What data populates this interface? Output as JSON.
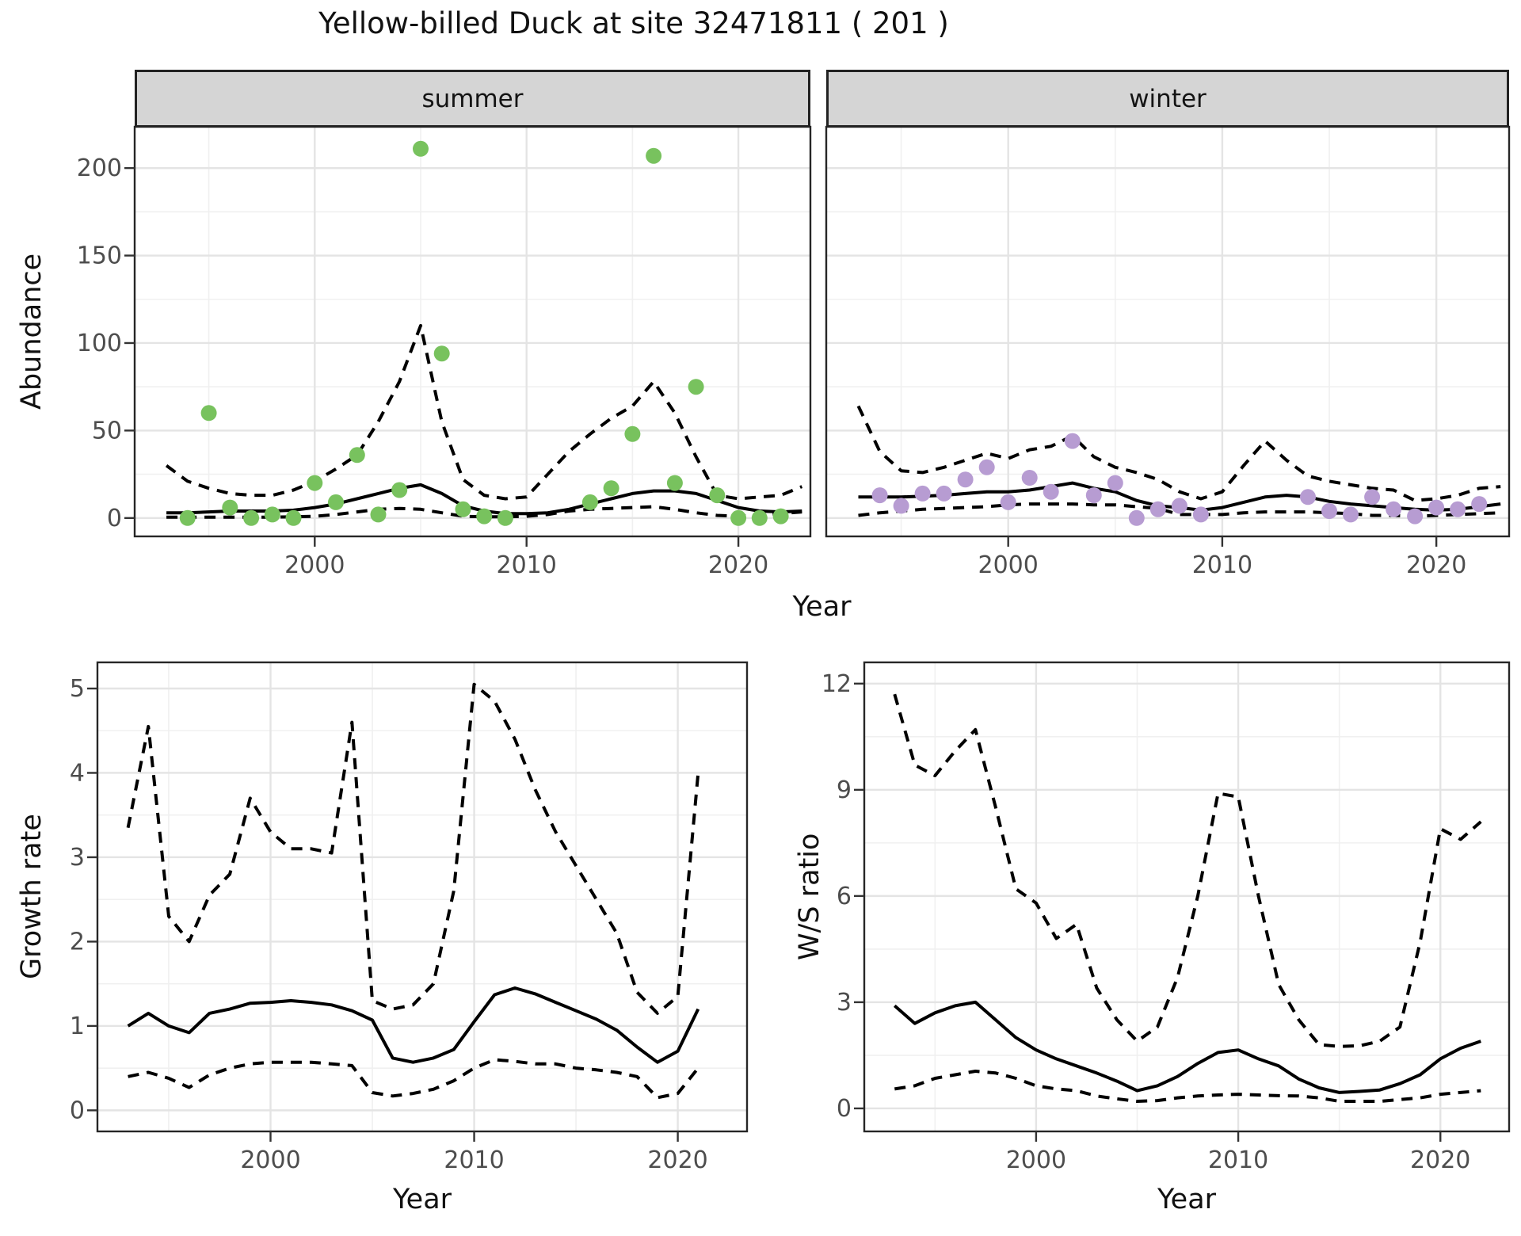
{
  "title": "Yellow-billed Duck at site 32471811 ( 201 )",
  "axis_titles": {
    "abundance": "Abundance",
    "year_top": "Year",
    "growth_rate": "Growth rate",
    "year_growth": "Year",
    "ws_ratio": "W/S ratio",
    "year_ws": "Year"
  },
  "facets": {
    "summer": "summer",
    "winter": "winter"
  },
  "colors": {
    "summer_points": "#78c25e",
    "winter_points": "#b79cd2",
    "line": "#000000",
    "strip_fill": "#d5d5d5",
    "grid_major": "#e4e4e4",
    "grid_minor": "#f0f0f0",
    "axis_text": "#4d4d4d",
    "panel_border": "#262626"
  },
  "chart_data": [
    {
      "panel": "summer",
      "type": "scatter",
      "facet_label": "summer",
      "ylabel": "Abundance",
      "xlabel": "Year",
      "xlim": [
        1991.5,
        2023.4
      ],
      "ylim": [
        -10.5,
        223.6
      ],
      "x_ticks": {
        "values": [
          2000,
          2010,
          2020
        ],
        "labels": [
          "2000",
          "2010",
          "2020"
        ],
        "minor": [
          1995,
          2005,
          2015
        ]
      },
      "y_ticks": {
        "values": [
          0,
          50,
          100,
          150,
          200
        ],
        "labels": [
          "0",
          "50",
          "100",
          "150",
          "200"
        ],
        "minor": [
          25,
          75,
          125,
          175
        ]
      },
      "show_x_labels": true,
      "show_y_labels": true,
      "point_color": "#78c25e",
      "points": {
        "year": [
          1994,
          1995,
          1996,
          1997,
          1998,
          1999,
          2000,
          2001,
          2002,
          2003,
          2004,
          2005,
          2006,
          2007,
          2008,
          2009,
          2013,
          2014,
          2015,
          2016,
          2017,
          2018,
          2019,
          2020,
          2021,
          2022
        ],
        "abundance": [
          0,
          60,
          6,
          0,
          2,
          0,
          20,
          9,
          36,
          2,
          16,
          211,
          94,
          5,
          1,
          0,
          9,
          17,
          48,
          207,
          20,
          75,
          13,
          0,
          0,
          1
        ]
      },
      "lines": {
        "mean": {
          "year": [
            1993,
            1994,
            1995,
            1996,
            1997,
            1998,
            1999,
            2000,
            2001,
            2002,
            2003,
            2004,
            2005,
            2006,
            2007,
            2008,
            2009,
            2010,
            2011,
            2012,
            2013,
            2014,
            2015,
            2016,
            2017,
            2018,
            2019,
            2020,
            2021,
            2022,
            2023
          ],
          "value": [
            3,
            3,
            3.5,
            4,
            4,
            4,
            4.5,
            6,
            8,
            11,
            14,
            17,
            19,
            14,
            7,
            4,
            2.5,
            2.5,
            3,
            5,
            8,
            11,
            14,
            15.5,
            15.5,
            14,
            10,
            6,
            4,
            3.5,
            4
          ]
        },
        "upper_ci": {
          "year": [
            1993,
            1994,
            1995,
            1996,
            1997,
            1998,
            1999,
            2000,
            2001,
            2002,
            2003,
            2004,
            2005,
            2006,
            2007,
            2008,
            2009,
            2010,
            2011,
            2012,
            2013,
            2014,
            2015,
            2016,
            2017,
            2018,
            2019,
            2020,
            2021,
            2022,
            2023
          ],
          "value": [
            30,
            21,
            17,
            14,
            13,
            13,
            16,
            21,
            28,
            36,
            55,
            78,
            110,
            55,
            22,
            13,
            11,
            12,
            25,
            38,
            48,
            57,
            64,
            78,
            60,
            35,
            13,
            11,
            12,
            13,
            18
          ]
        },
        "lower_ci": {
          "year": [
            1993,
            1994,
            1995,
            1996,
            1997,
            1998,
            1999,
            2000,
            2001,
            2002,
            2003,
            2004,
            2005,
            2006,
            2007,
            2008,
            2009,
            2010,
            2011,
            2012,
            2013,
            2014,
            2015,
            2016,
            2017,
            2018,
            2019,
            2020,
            2021,
            2022,
            2023
          ],
          "value": [
            0.5,
            0.5,
            0.5,
            0.5,
            0.5,
            0.5,
            0.7,
            1,
            2,
            3.5,
            5,
            5.5,
            5,
            3,
            1,
            0.7,
            0.7,
            1,
            2,
            4,
            5,
            5.5,
            6,
            6.5,
            5,
            3,
            1.5,
            1,
            1.5,
            2.5,
            3.5
          ]
        }
      }
    },
    {
      "panel": "winter",
      "type": "scatter",
      "facet_label": "winter",
      "ylabel": "Abundance",
      "xlabel": "Year",
      "xlim": [
        1991.5,
        2023.4
      ],
      "ylim": [
        -10.5,
        223.6
      ],
      "x_ticks": {
        "values": [
          2000,
          2010,
          2020
        ],
        "labels": [
          "2000",
          "2010",
          "2020"
        ],
        "minor": [
          1995,
          2005,
          2015
        ]
      },
      "y_ticks": {
        "values": [
          0,
          50,
          100,
          150,
          200
        ],
        "labels": [
          "0",
          "50",
          "100",
          "150",
          "200"
        ],
        "minor": [
          25,
          75,
          125,
          175
        ]
      },
      "show_x_labels": true,
      "show_y_labels": false,
      "point_color": "#b79cd2",
      "points": {
        "year": [
          1994,
          1995,
          1996,
          1997,
          1998,
          1999,
          2000,
          2001,
          2002,
          2003,
          2004,
          2005,
          2006,
          2007,
          2008,
          2009,
          2014,
          2015,
          2016,
          2017,
          2018,
          2019,
          2020,
          2021,
          2022
        ],
        "abundance": [
          13,
          7,
          14,
          14,
          22,
          29,
          9,
          23,
          15,
          44,
          13,
          20,
          0,
          5,
          7,
          2,
          12,
          4,
          2,
          12,
          5,
          1,
          6,
          5,
          8
        ]
      },
      "lines": {
        "mean": {
          "year": [
            1993,
            1994,
            1995,
            1996,
            1997,
            1998,
            1999,
            2000,
            2001,
            2002,
            2003,
            2004,
            2005,
            2006,
            2007,
            2008,
            2009,
            2010,
            2011,
            2012,
            2013,
            2014,
            2015,
            2016,
            2017,
            2018,
            2019,
            2020,
            2021,
            2022,
            2023
          ],
          "value": [
            12,
            12,
            12,
            12.5,
            13,
            14,
            15,
            15,
            16,
            18,
            20,
            17,
            15,
            10,
            7,
            6,
            4.5,
            6,
            9,
            12,
            13,
            12,
            9.5,
            8,
            7,
            6,
            5,
            4.5,
            5,
            6.5,
            8
          ]
        },
        "upper_ci": {
          "year": [
            1993,
            1994,
            1995,
            1996,
            1997,
            1998,
            1999,
            2000,
            2001,
            2002,
            2003,
            2004,
            2005,
            2006,
            2007,
            2008,
            2009,
            2010,
            2011,
            2012,
            2013,
            2014,
            2015,
            2016,
            2017,
            2018,
            2019,
            2020,
            2021,
            2022,
            2023
          ],
          "value": [
            64,
            38,
            27,
            26,
            29,
            33,
            37,
            34,
            39,
            41,
            47,
            35,
            29,
            26,
            22,
            15,
            11,
            15,
            30,
            44,
            33,
            24,
            21,
            19,
            17,
            16,
            10,
            11,
            13,
            17,
            18
          ]
        },
        "lower_ci": {
          "year": [
            1993,
            1994,
            1995,
            1996,
            1997,
            1998,
            1999,
            2000,
            2001,
            2002,
            2003,
            2004,
            2005,
            2006,
            2007,
            2008,
            2009,
            2010,
            2011,
            2012,
            2013,
            2014,
            2015,
            2016,
            2017,
            2018,
            2019,
            2020,
            2021,
            2022,
            2023
          ],
          "value": [
            1.5,
            3,
            4,
            5,
            5.5,
            6,
            6.5,
            7.5,
            8,
            8,
            8,
            7.5,
            7.5,
            6.5,
            5.5,
            2,
            2,
            2,
            3,
            3.5,
            3.5,
            3.5,
            3,
            2.5,
            1.5,
            1.5,
            1,
            1.5,
            2,
            2.5,
            3
          ]
        }
      }
    },
    {
      "panel": "growth",
      "type": "line",
      "facet_label": null,
      "ylabel": "Growth rate",
      "xlabel": "Year",
      "xlim": [
        1991.5,
        2023.4
      ],
      "ylim": [
        -0.25,
        5.31
      ],
      "x_ticks": {
        "values": [
          2000,
          2010,
          2020
        ],
        "labels": [
          "2000",
          "2010",
          "2020"
        ],
        "minor": [
          1995,
          2005,
          2015
        ]
      },
      "y_ticks": {
        "values": [
          0,
          1,
          2,
          3,
          4,
          5
        ],
        "labels": [
          "0",
          "1",
          "2",
          "3",
          "4",
          "5"
        ],
        "minor": [
          0.5,
          1.5,
          2.5,
          3.5,
          4.5
        ]
      },
      "show_x_labels": true,
      "show_y_labels": true,
      "point_color": null,
      "points": null,
      "lines": {
        "mean": {
          "year": [
            1993,
            1994,
            1995,
            1996,
            1997,
            1998,
            1999,
            2000,
            2001,
            2002,
            2003,
            2004,
            2005,
            2006,
            2007,
            2008,
            2009,
            2010,
            2011,
            2012,
            2013,
            2014,
            2015,
            2016,
            2017,
            2018,
            2019,
            2020,
            2021
          ],
          "value": [
            1.0,
            1.15,
            1.0,
            0.92,
            1.15,
            1.2,
            1.27,
            1.28,
            1.3,
            1.28,
            1.25,
            1.18,
            1.07,
            0.62,
            0.57,
            0.62,
            0.72,
            1.05,
            1.37,
            1.45,
            1.38,
            1.28,
            1.18,
            1.08,
            0.95,
            0.75,
            0.57,
            0.7,
            1.2
          ]
        },
        "upper_ci": {
          "year": [
            1993,
            1994,
            1995,
            1996,
            1997,
            1998,
            1999,
            2000,
            2001,
            2002,
            2003,
            2004,
            2005,
            2006,
            2007,
            2008,
            2009,
            2010,
            2011,
            2012,
            2013,
            2014,
            2015,
            2016,
            2017,
            2018,
            2019,
            2020,
            2021
          ],
          "value": [
            3.35,
            4.55,
            2.3,
            2.0,
            2.55,
            2.8,
            3.7,
            3.3,
            3.1,
            3.1,
            3.05,
            4.6,
            1.3,
            1.2,
            1.25,
            1.5,
            2.6,
            5.05,
            4.85,
            4.4,
            3.8,
            3.3,
            2.9,
            2.5,
            2.1,
            1.4,
            1.15,
            1.35,
            4.0
          ]
        },
        "lower_ci": {
          "year": [
            1993,
            1994,
            1995,
            1996,
            1997,
            1998,
            1999,
            2000,
            2001,
            2002,
            2003,
            2004,
            2005,
            2006,
            2007,
            2008,
            2009,
            2010,
            2011,
            2012,
            2013,
            2014,
            2015,
            2016,
            2017,
            2018,
            2019,
            2020,
            2021
          ],
          "value": [
            0.4,
            0.45,
            0.38,
            0.27,
            0.42,
            0.5,
            0.55,
            0.57,
            0.57,
            0.57,
            0.55,
            0.53,
            0.21,
            0.17,
            0.2,
            0.25,
            0.35,
            0.5,
            0.6,
            0.58,
            0.55,
            0.55,
            0.5,
            0.48,
            0.45,
            0.4,
            0.15,
            0.2,
            0.5
          ]
        }
      }
    },
    {
      "panel": "ws",
      "type": "line",
      "facet_label": null,
      "ylabel": "W/S ratio",
      "xlabel": "Year",
      "xlim": [
        1991.5,
        2023.4
      ],
      "ylim": [
        -0.65,
        12.6
      ],
      "x_ticks": {
        "values": [
          2000,
          2010,
          2020
        ],
        "labels": [
          "2000",
          "2010",
          "2020"
        ],
        "minor": [
          1995,
          2005,
          2015
        ]
      },
      "y_ticks": {
        "values": [
          0,
          3,
          6,
          9,
          12
        ],
        "labels": [
          "0",
          "3",
          "6",
          "9",
          "12"
        ],
        "minor": [
          1.5,
          4.5,
          7.5,
          10.5
        ]
      },
      "show_x_labels": true,
      "show_y_labels": true,
      "point_color": null,
      "points": null,
      "lines": {
        "mean": {
          "year": [
            1993,
            1994,
            1995,
            1996,
            1997,
            1998,
            1999,
            2000,
            2001,
            2002,
            2003,
            2004,
            2005,
            2006,
            2007,
            2008,
            2009,
            2010,
            2011,
            2012,
            2013,
            2014,
            2015,
            2016,
            2017,
            2018,
            2019,
            2020,
            2021,
            2022
          ],
          "value": [
            2.9,
            2.4,
            2.7,
            2.9,
            3.0,
            2.5,
            2.0,
            1.65,
            1.4,
            1.2,
            1.0,
            0.77,
            0.5,
            0.64,
            0.9,
            1.27,
            1.58,
            1.65,
            1.4,
            1.2,
            0.83,
            0.58,
            0.45,
            0.48,
            0.52,
            0.7,
            0.95,
            1.4,
            1.7,
            1.9
          ]
        },
        "upper_ci": {
          "year": [
            1993,
            1994,
            1995,
            1996,
            1997,
            1998,
            1999,
            2000,
            2001,
            2002,
            2003,
            2004,
            2005,
            2006,
            2007,
            2008,
            2009,
            2010,
            2011,
            2012,
            2013,
            2014,
            2015,
            2016,
            2017,
            2018,
            2019,
            2020,
            2021,
            2022
          ],
          "value": [
            11.7,
            9.7,
            9.4,
            10.1,
            10.7,
            8.5,
            6.2,
            5.8,
            4.8,
            5.2,
            3.4,
            2.5,
            1.9,
            2.3,
            3.7,
            6.0,
            8.9,
            8.8,
            6.0,
            3.5,
            2.5,
            1.8,
            1.75,
            1.77,
            1.9,
            2.3,
            4.7,
            7.9,
            7.6,
            8.1
          ]
        },
        "lower_ci": {
          "year": [
            1993,
            1994,
            1995,
            1996,
            1997,
            1998,
            1999,
            2000,
            2001,
            2002,
            2003,
            2004,
            2005,
            2006,
            2007,
            2008,
            2009,
            2010,
            2011,
            2012,
            2013,
            2014,
            2015,
            2016,
            2017,
            2018,
            2019,
            2020,
            2021,
            2022
          ],
          "value": [
            0.55,
            0.64,
            0.85,
            0.95,
            1.05,
            1.0,
            0.85,
            0.64,
            0.55,
            0.5,
            0.35,
            0.27,
            0.2,
            0.22,
            0.3,
            0.35,
            0.38,
            0.4,
            0.38,
            0.36,
            0.35,
            0.3,
            0.2,
            0.2,
            0.2,
            0.25,
            0.3,
            0.4,
            0.45,
            0.5
          ]
        }
      }
    }
  ]
}
